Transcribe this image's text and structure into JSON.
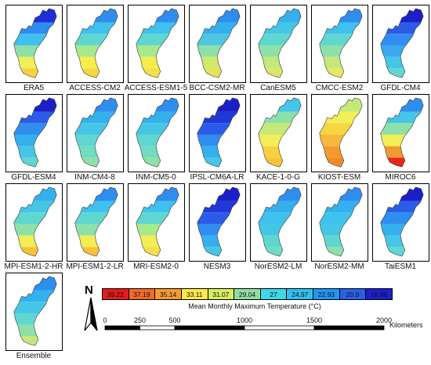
{
  "panels": [
    {
      "label": "ERA5",
      "scheme": [
        "#1e2fd8",
        "#2f8df0",
        "#3ec1ee",
        "#8de0a8",
        "#f2ee55",
        "#f5d040"
      ]
    },
    {
      "label": "ACCESS-CM2",
      "scheme": [
        "#2f8df0",
        "#3ec1ee",
        "#5fd7d0",
        "#a8e98c",
        "#f5ee4a",
        "#f6d641"
      ]
    },
    {
      "label": "ACCESS-ESM1-5",
      "scheme": [
        "#2f8df0",
        "#3ec1ee",
        "#5fd7d0",
        "#a8e98c",
        "#f5ee4a",
        "#f3e04a"
      ]
    },
    {
      "label": "BCC-CSM2-MR",
      "scheme": [
        "#2f8df0",
        "#35b0ee",
        "#4ec6e0",
        "#8de0a8",
        "#cfe96a",
        "#e3e25a"
      ]
    },
    {
      "label": "CanESM5",
      "scheme": [
        "#35b0ee",
        "#45c6e6",
        "#5fd7d0",
        "#8de0a8",
        "#c4e879",
        "#dce56a"
      ]
    },
    {
      "label": "CMCC-ESM2",
      "scheme": [
        "#2f8df0",
        "#3ec1ee",
        "#5fd7d0",
        "#8de0a8",
        "#c4e879",
        "#e7e860"
      ]
    },
    {
      "label": "GFDL-CM4",
      "scheme": [
        "#1a20c8",
        "#2a5ce8",
        "#2f8df0",
        "#3aa9ee",
        "#45c6e6",
        "#5fd7d0"
      ]
    },
    {
      "label": "GFDL-ESM4",
      "scheme": [
        "#1a20c8",
        "#2a5ce8",
        "#2f8df0",
        "#35b0ee",
        "#45c6e6",
        "#5fd7d0"
      ]
    },
    {
      "label": "INM-CM4-8",
      "scheme": [
        "#2f8df0",
        "#35b0ee",
        "#45c6e6",
        "#5fd7d0",
        "#70dcc0",
        "#8de0a8"
      ]
    },
    {
      "label": "INM-CM5-0",
      "scheme": [
        "#2f8df0",
        "#35b0ee",
        "#45c6e6",
        "#5fd7d0",
        "#70dcc0",
        "#8de0a8"
      ]
    },
    {
      "label": "IPSL-CM6A-LR",
      "scheme": [
        "#1a20c8",
        "#2138d8",
        "#2a5ce8",
        "#2f8df0",
        "#35b0ee",
        "#45c6e6"
      ]
    },
    {
      "label": "KACE-1-0-G",
      "scheme": [
        "#45c6e6",
        "#8de0a8",
        "#c4e879",
        "#f2ee55",
        "#f5d040",
        "#f6c23a"
      ]
    },
    {
      "label": "KIOST-ESM",
      "scheme": [
        "#c4e879",
        "#f2ee55",
        "#f6d641",
        "#f6b93a",
        "#f39a2e",
        "#ef8a2a"
      ]
    },
    {
      "label": "MIROC6",
      "scheme": [
        "#2f8df0",
        "#45c6e6",
        "#8de0a8",
        "#f2ee55",
        "#f39a2e",
        "#e8261e"
      ]
    },
    {
      "label": "MPI-ESM1-2-HR",
      "scheme": [
        "#35b0ee",
        "#45c6e6",
        "#5fd7d0",
        "#8de0a8",
        "#f2ee55",
        "#f6c23a"
      ]
    },
    {
      "label": "MPI-ESM1-2-LR",
      "scheme": [
        "#2f8df0",
        "#3ec1ee",
        "#5fd7d0",
        "#8de0a8",
        "#f2ee55",
        "#f6c23a"
      ]
    },
    {
      "label": "MRI-ESM2-0",
      "scheme": [
        "#2f8df0",
        "#3ec1ee",
        "#5fd7d0",
        "#a8e98c",
        "#f2ee55",
        "#f3e04a"
      ]
    },
    {
      "label": "NESM3",
      "scheme": [
        "#1a20c8",
        "#2138d8",
        "#2a5ce8",
        "#2f8df0",
        "#35b0ee",
        "#45c6e6"
      ]
    },
    {
      "label": "NorESM2-LM",
      "scheme": [
        "#2f8df0",
        "#35b0ee",
        "#3ec1ee",
        "#45c6e6",
        "#5fd7d0",
        "#70dcc0"
      ]
    },
    {
      "label": "NorESM2-MM",
      "scheme": [
        "#2f8df0",
        "#35b0ee",
        "#3ec1ee",
        "#45c6e6",
        "#5fd7d0",
        "#8de0a8"
      ]
    },
    {
      "label": "TaiESM1",
      "scheme": [
        "#1a20c8",
        "#2a5ce8",
        "#2f8df0",
        "#35b0ee",
        "#45c6e6",
        "#5fd7d0"
      ]
    },
    {
      "label": "Ensemble",
      "scheme": [
        "#2f8df0",
        "#35b0ee",
        "#45c6e6",
        "#5fd7d0",
        "#8de0a8",
        "#c4e879"
      ]
    }
  ],
  "legend": {
    "title": "Mean Monthly Maximum Temperature (°C)",
    "classes": [
      {
        "value": "39.22",
        "color": "#e41a1c"
      },
      {
        "value": "37.19",
        "color": "#f26a2b"
      },
      {
        "value": "35.14",
        "color": "#f89a33"
      },
      {
        "value": "33.11",
        "color": "#fde84a"
      },
      {
        "value": "31.07",
        "color": "#d6ee62"
      },
      {
        "value": "29.04",
        "color": "#8fe0a0"
      },
      {
        "value": "27",
        "color": "#3fd8e8"
      },
      {
        "value": "24.97",
        "color": "#2ec0f0"
      },
      {
        "value": "22.93",
        "color": "#2196f3"
      },
      {
        "value": "20.9",
        "color": "#2a60e8"
      },
      {
        "value": "18.86",
        "color": "#1a20d0"
      }
    ]
  },
  "north_arrow": {
    "letter": "N"
  },
  "scale_bar": {
    "ticks": [
      "0",
      "250",
      "500",
      "1000",
      "1500",
      "2000"
    ],
    "units": "Kilometers"
  }
}
